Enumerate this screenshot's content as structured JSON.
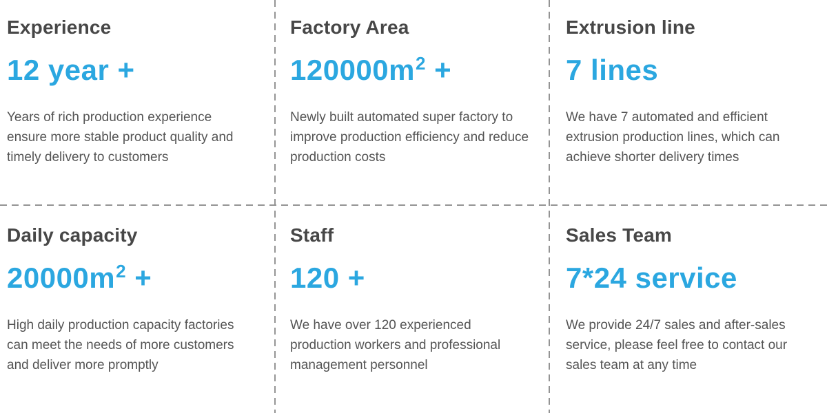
{
  "colors": {
    "accent_blue": "#2ba7e0",
    "heading_gray": "#474747",
    "body_gray": "#545454",
    "divider_gray": "#949494",
    "background": "#ffffff"
  },
  "cards": [
    {
      "title": "Experience",
      "value": {
        "main": "12 year +",
        "sup": "",
        "tail": ""
      },
      "description": "Years of rich production experience ensure more stable product quality and timely delivery to customers"
    },
    {
      "title": "Factory Area",
      "value": {
        "main": "120000m",
        "sup": "2",
        "tail": " +"
      },
      "description": "Newly built automated super factory to improve production efficiency and reduce production costs"
    },
    {
      "title": "Extrusion line",
      "value": {
        "main": "7 lines",
        "sup": "",
        "tail": ""
      },
      "description": "We have 7 automated and efficient extrusion production lines, which can achieve shorter delivery times"
    },
    {
      "title": "Daily capacity",
      "value": {
        "main": "20000m",
        "sup": "2",
        "tail": " +"
      },
      "description": "High daily production capacity factories can meet the needs of more customers and deliver more promptly"
    },
    {
      "title": "Staff",
      "value": {
        "main": "120 +",
        "sup": "",
        "tail": ""
      },
      "description": "We have over 120 experienced production workers and professional management personnel"
    },
    {
      "title": "Sales Team",
      "value": {
        "main": "7*24 service",
        "sup": "",
        "tail": ""
      },
      "description": "We provide 24/7 sales and after-sales service, please feel free to contact our sales team at any time"
    }
  ]
}
